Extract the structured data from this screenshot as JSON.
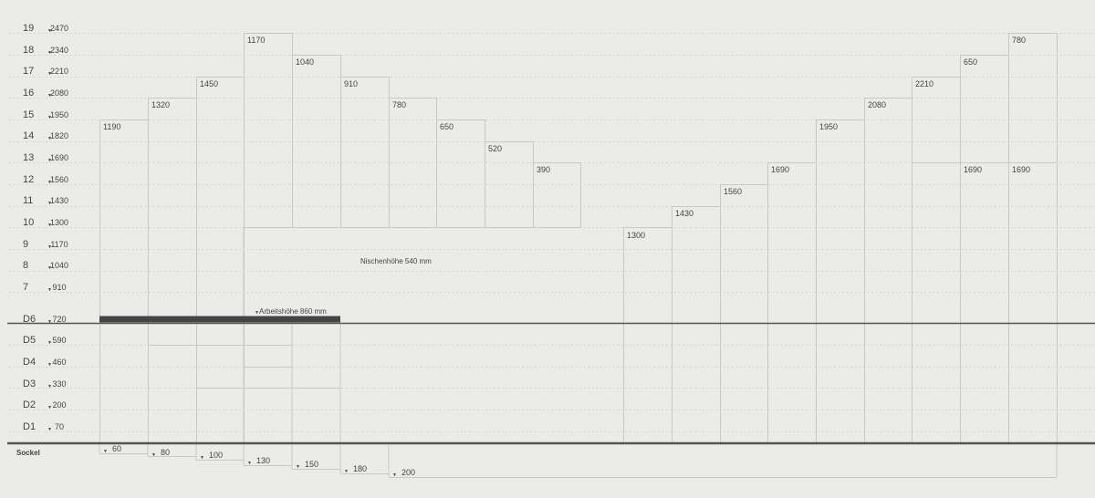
{
  "row_levels": [
    {
      "label": "19",
      "value": "2470"
    },
    {
      "label": "18",
      "value": "2340"
    },
    {
      "label": "17",
      "value": "2210"
    },
    {
      "label": "16",
      "value": "2080"
    },
    {
      "label": "15",
      "value": "1950"
    },
    {
      "label": "14",
      "value": "1820"
    },
    {
      "label": "13",
      "value": "1690"
    },
    {
      "label": "12",
      "value": "1560"
    },
    {
      "label": "11",
      "value": "1430"
    },
    {
      "label": "10",
      "value": "1300"
    },
    {
      "label": "9",
      "value": "1170"
    },
    {
      "label": "8",
      "value": "1040"
    },
    {
      "label": "7",
      "value": "910"
    },
    {
      "label": "D6",
      "value": "720"
    },
    {
      "label": "D5",
      "value": "590"
    },
    {
      "label": "D4",
      "value": "460"
    },
    {
      "label": "D3",
      "value": "330"
    },
    {
      "label": "D2",
      "value": "200"
    },
    {
      "label": "D1",
      "value": "70"
    }
  ],
  "sockel": {
    "label": "Sockel",
    "heights": [
      "60",
      "80",
      "100",
      "130",
      "150",
      "180",
      "200"
    ]
  },
  "annotations": {
    "arbeitshoehe": "Arbeitshöhe 860 mm",
    "nischenhoehe": "Nischenhöhe 540 mm"
  },
  "cabinet_labels": [
    "1190",
    "1320",
    "1450",
    "1170",
    "1040",
    "910",
    "780",
    "650",
    "520",
    "390",
    "1300",
    "1430",
    "1560",
    "1690",
    "1950",
    "2080",
    "2210",
    "650",
    "780",
    "1690",
    "1690"
  ],
  "colors": {
    "background": "#ebebe7",
    "line": "#c8c8c4",
    "dotted": "#c4c4c0",
    "heavy": "#555555",
    "worktop": "#444444",
    "text": "#444444"
  }
}
